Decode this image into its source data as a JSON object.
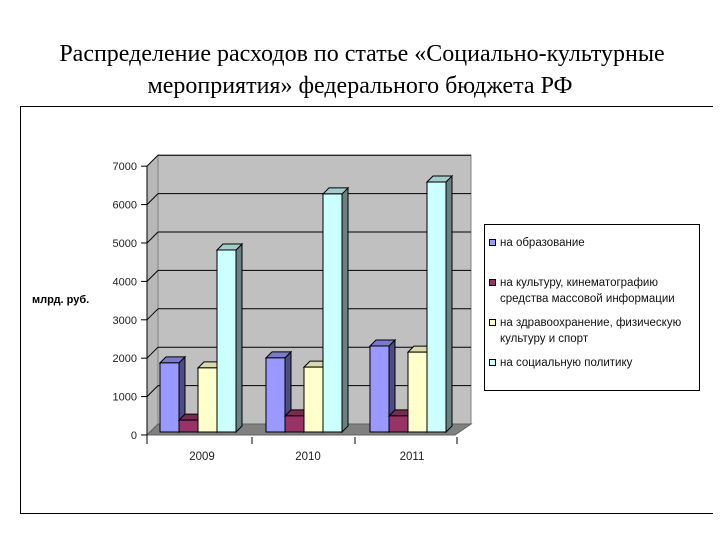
{
  "title": {
    "line1": "Распределение расходов по статье «Социально-культурные",
    "line2": "мероприятия» федерального бюджета РФ"
  },
  "axis": {
    "ylabel": "млрд. руб.",
    "yticks": [
      "0",
      "1000",
      "2000",
      "3000",
      "4000",
      "5000",
      "6000",
      "7000"
    ],
    "categories": [
      "2009",
      "2010",
      "2011"
    ]
  },
  "legend": [
    {
      "label": "на образование",
      "color": "#9999FF"
    },
    {
      "label": "на культуру, кинематографию средства массовой информации",
      "color": "#993366"
    },
    {
      "label": "на здравоохранение, физическую культуру и спорт",
      "color": "#FFFFCC"
    },
    {
      "label": "на социальную политику",
      "color": "#CCFFFF"
    }
  ],
  "chart_data": {
    "type": "bar",
    "title": "Распределение расходов по статье «Социально-культурные мероприятия» федерального бюджета РФ",
    "xlabel": "",
    "ylabel": "млрд. руб.",
    "ylim": [
      0,
      7000
    ],
    "grid": true,
    "legend_position": "right",
    "style": "3d-clustered-column",
    "categories": [
      "2009",
      "2010",
      "2011"
    ],
    "series": [
      {
        "name": "на образование",
        "color": "#9999FF",
        "values": [
          1800,
          1930,
          2240
        ]
      },
      {
        "name": "на культуру, кинематографию средства массовой информации",
        "color": "#993366",
        "values": [
          310,
          420,
          420
        ]
      },
      {
        "name": "на здравоохранение, физическую культуру и спорт",
        "color": "#FFFFCC",
        "values": [
          1670,
          1690,
          2080
        ]
      },
      {
        "name": "на социальную политику",
        "color": "#CCFFFF",
        "values": [
          4740,
          6200,
          6510
        ]
      }
    ]
  }
}
